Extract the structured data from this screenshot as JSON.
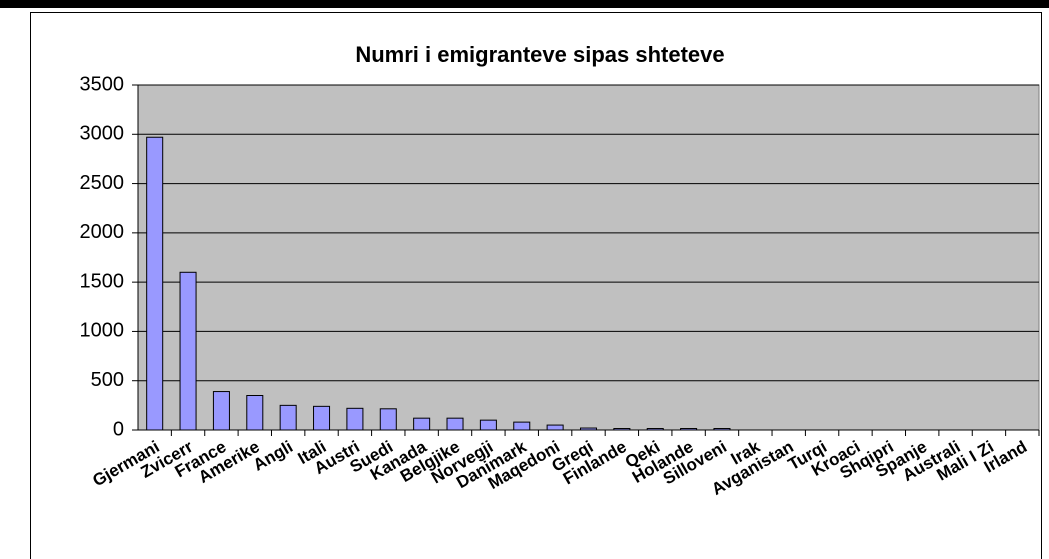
{
  "chart_data": {
    "type": "bar",
    "title": "Numri i emigranteve sipas shteteve",
    "categories": [
      "Gjermani",
      "Zvicerr",
      "France",
      "Amerike",
      "Angli",
      "Itali",
      "Austri",
      "Suedi",
      "Kanada",
      "Belgjike",
      "Norvegji",
      "Danimark",
      "Maqedoni",
      "Greqi",
      "Finlande",
      "Qeki",
      "Holande",
      "Silloveni",
      "Irak",
      "Avganistan",
      "Turqi",
      "Kroaci",
      "Shqipri",
      "Spanje",
      "Australi",
      "Mali I Zi",
      "Irland"
    ],
    "values": [
      2970,
      1600,
      390,
      350,
      250,
      240,
      220,
      215,
      120,
      120,
      100,
      80,
      50,
      20,
      15,
      15,
      15,
      15,
      0,
      0,
      0,
      0,
      0,
      0,
      0,
      0,
      0
    ],
    "color": "#9999ff",
    "plot_background": "#c0c0c0",
    "ylim": [
      0,
      3500
    ],
    "yticks": [
      0,
      500,
      1000,
      1500,
      2000,
      2500,
      3000,
      3500
    ],
    "grid": true
  }
}
